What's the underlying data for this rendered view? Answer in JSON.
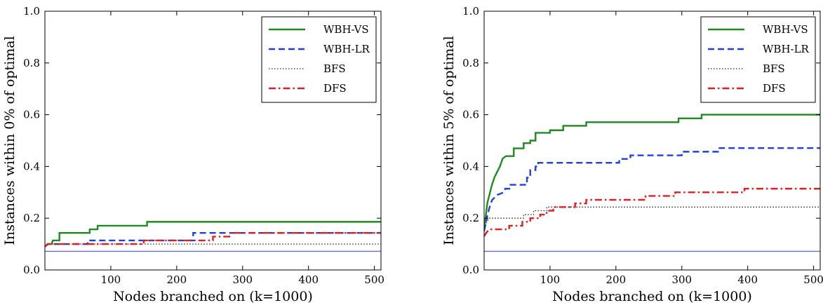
{
  "chart_data": [
    {
      "type": "line",
      "xlabel": "Nodes branched on (k=1000)",
      "ylabel": "Instances within 0% of optimal",
      "xlim": [
        0,
        510
      ],
      "ylim": [
        0,
        1.0
      ],
      "xticks": [
        "100",
        "200",
        "300",
        "400",
        "500"
      ],
      "yticks": [
        "0.0",
        "0.2",
        "0.4",
        "0.6",
        "0.8",
        "1.0"
      ],
      "grid": false,
      "legend_position": "top-right",
      "baseline": {
        "y": 0.072,
        "color": "#5b6ed6"
      },
      "series": [
        {
          "name": "WBH-VS",
          "color": "#1f8a1f",
          "dash": "solid",
          "points": [
            [
              0,
              0.09
            ],
            [
              5,
              0.1
            ],
            [
              10,
              0.1
            ],
            [
              12,
              0.114
            ],
            [
              22,
              0.114
            ],
            [
              22,
              0.143
            ],
            [
              68,
              0.143
            ],
            [
              68,
              0.157
            ],
            [
              80,
              0.157
            ],
            [
              80,
              0.171
            ],
            [
              155,
              0.171
            ],
            [
              155,
              0.186
            ],
            [
              510,
              0.186
            ]
          ]
        },
        {
          "name": "WBH-LR",
          "color": "#1f3fe0",
          "dash": "dash",
          "points": [
            [
              0,
              0.09
            ],
            [
              4,
              0.1
            ],
            [
              65,
              0.1
            ],
            [
              65,
              0.114
            ],
            [
              225,
              0.114
            ],
            [
              225,
              0.143
            ],
            [
              510,
              0.143
            ]
          ]
        },
        {
          "name": "BFS",
          "color": "#222222",
          "dash": "dot",
          "points": [
            [
              0,
              0.09
            ],
            [
              3,
              0.1
            ],
            [
              510,
              0.1
            ]
          ]
        },
        {
          "name": "DFS",
          "color": "#e01f1f",
          "dash": "dashdot",
          "points": [
            [
              0,
              0.09
            ],
            [
              4,
              0.1
            ],
            [
              150,
              0.1
            ],
            [
              150,
              0.114
            ],
            [
              255,
              0.114
            ],
            [
              255,
              0.129
            ],
            [
              280,
              0.129
            ],
            [
              280,
              0.143
            ],
            [
              510,
              0.143
            ]
          ]
        }
      ]
    },
    {
      "type": "line",
      "xlabel": "Nodes branched on (k=1000)",
      "ylabel": "Instances within 5% of optimal",
      "xlim": [
        0,
        510
      ],
      "ylim": [
        0,
        1.0
      ],
      "xticks": [
        "100",
        "200",
        "300",
        "400",
        "500"
      ],
      "yticks": [
        "0.0",
        "0.2",
        "0.4",
        "0.6",
        "0.8",
        "1.0"
      ],
      "grid": false,
      "legend_position": "top-right",
      "baseline": {
        "y": 0.072,
        "color": "#5b6ed6"
      },
      "series": [
        {
          "name": "WBH-VS",
          "color": "#1f8a1f",
          "dash": "solid",
          "points": [
            [
              0,
              0.15
            ],
            [
              3,
              0.22
            ],
            [
              5,
              0.26
            ],
            [
              8,
              0.29
            ],
            [
              12,
              0.33
            ],
            [
              16,
              0.36
            ],
            [
              20,
              0.38
            ],
            [
              24,
              0.4
            ],
            [
              28,
              0.43
            ],
            [
              33,
              0.44
            ],
            [
              45,
              0.44
            ],
            [
              45,
              0.47
            ],
            [
              60,
              0.47
            ],
            [
              60,
              0.49
            ],
            [
              70,
              0.49
            ],
            [
              70,
              0.5
            ],
            [
              78,
              0.5
            ],
            [
              78,
              0.53
            ],
            [
              100,
              0.53
            ],
            [
              100,
              0.54
            ],
            [
              120,
              0.54
            ],
            [
              120,
              0.557
            ],
            [
              155,
              0.557
            ],
            [
              155,
              0.571
            ],
            [
              295,
              0.571
            ],
            [
              295,
              0.586
            ],
            [
              330,
              0.586
            ],
            [
              330,
              0.6
            ],
            [
              510,
              0.6
            ]
          ]
        },
        {
          "name": "WBH-LR",
          "color": "#1f3fe0",
          "dash": "dash",
          "points": [
            [
              0,
              0.15
            ],
            [
              4,
              0.2
            ],
            [
              8,
              0.24
            ],
            [
              12,
              0.27
            ],
            [
              20,
              0.29
            ],
            [
              30,
              0.3
            ],
            [
              32,
              0.314
            ],
            [
              40,
              0.314
            ],
            [
              40,
              0.329
            ],
            [
              65,
              0.329
            ],
            [
              65,
              0.357
            ],
            [
              70,
              0.357
            ],
            [
              70,
              0.386
            ],
            [
              78,
              0.386
            ],
            [
              78,
              0.4
            ],
            [
              82,
              0.4
            ],
            [
              82,
              0.414
            ],
            [
              205,
              0.414
            ],
            [
              205,
              0.429
            ],
            [
              222,
              0.429
            ],
            [
              222,
              0.443
            ],
            [
              300,
              0.443
            ],
            [
              300,
              0.457
            ],
            [
              355,
              0.457
            ],
            [
              355,
              0.471
            ],
            [
              510,
              0.471
            ]
          ]
        },
        {
          "name": "BFS",
          "color": "#222222",
          "dash": "dot",
          "points": [
            [
              0,
              0.15
            ],
            [
              4,
              0.186
            ],
            [
              8,
              0.2
            ],
            [
              60,
              0.2
            ],
            [
              60,
              0.214
            ],
            [
              75,
              0.214
            ],
            [
              75,
              0.229
            ],
            [
              95,
              0.229
            ],
            [
              95,
              0.243
            ],
            [
              510,
              0.243
            ]
          ]
        },
        {
          "name": "DFS",
          "color": "#e01f1f",
          "dash": "dashdot",
          "points": [
            [
              0,
              0.13
            ],
            [
              3,
              0.143
            ],
            [
              8,
              0.157
            ],
            [
              38,
              0.157
            ],
            [
              38,
              0.171
            ],
            [
              58,
              0.171
            ],
            [
              58,
              0.186
            ],
            [
              70,
              0.186
            ],
            [
              70,
              0.2
            ],
            [
              85,
              0.2
            ],
            [
              85,
              0.214
            ],
            [
              95,
              0.214
            ],
            [
              95,
              0.229
            ],
            [
              105,
              0.229
            ],
            [
              105,
              0.243
            ],
            [
              138,
              0.243
            ],
            [
              138,
              0.257
            ],
            [
              155,
              0.257
            ],
            [
              155,
              0.271
            ],
            [
              245,
              0.271
            ],
            [
              245,
              0.286
            ],
            [
              290,
              0.286
            ],
            [
              290,
              0.3
            ],
            [
              395,
              0.3
            ],
            [
              395,
              0.314
            ],
            [
              510,
              0.314
            ]
          ]
        }
      ]
    }
  ]
}
